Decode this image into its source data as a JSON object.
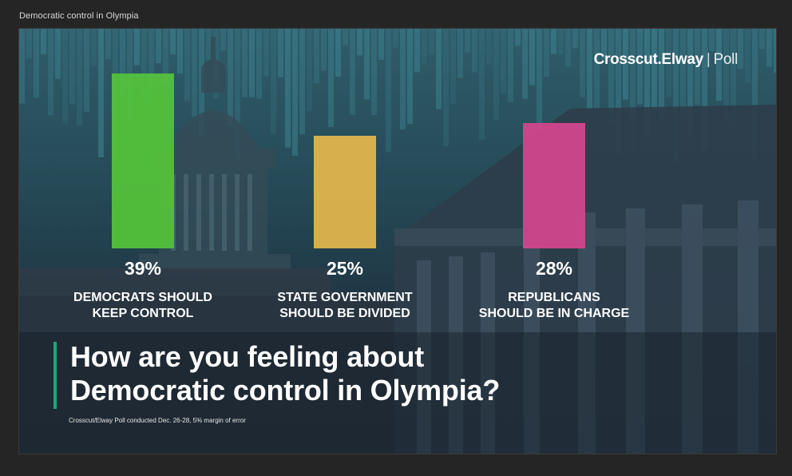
{
  "page_caption": "Democratic control in Olympia",
  "brand": {
    "name": "Crosscut.Elway",
    "separator": "|",
    "suffix": "Poll"
  },
  "headline": {
    "line1": "How are you feeling about",
    "line2": "Democratic control in Olympia?"
  },
  "footnote": "Crosscut/Elway Poll conducted Dec. 26-28, 5% margin of error",
  "chart_data": {
    "type": "bar",
    "unit": "%",
    "ylim": [
      0,
      40
    ],
    "grid": false,
    "categories": [
      {
        "line1": "Democrats should",
        "line2": "keep control"
      },
      {
        "line1": "State government",
        "line2": "should be divided"
      },
      {
        "line1": "Republicans",
        "line2": "should be in charge"
      }
    ],
    "values": [
      39,
      25,
      28
    ],
    "value_labels": [
      "39%",
      "25%",
      "28%"
    ],
    "colors": [
      "#55c43a",
      "#e6b84c",
      "#d6458e"
    ]
  }
}
